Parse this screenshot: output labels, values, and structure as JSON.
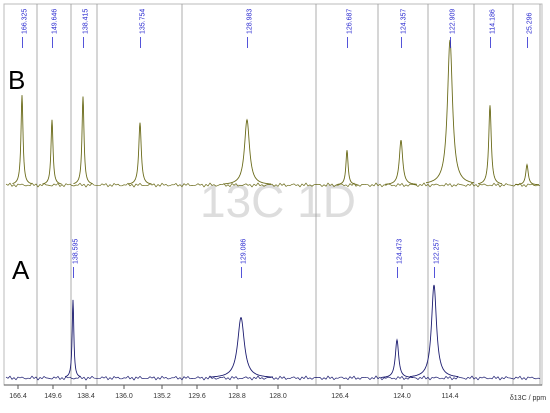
{
  "chart_data": {
    "type": "nmr",
    "watermark": "13C 1D",
    "x_axis_label": "δ13C / ppm",
    "segment_ticks": [
      "166.4",
      "149.6",
      "138.4",
      "136.0",
      "135.2",
      "129.6",
      "128.8",
      "128.0",
      "126.4",
      "124.0",
      "114.4"
    ],
    "spectra": [
      {
        "name": "B",
        "color": "#6b6b1a",
        "peaks": [
          {
            "label": "166.325",
            "intensity": 62
          },
          {
            "label": "149.646",
            "intensity": 45
          },
          {
            "label": "138.415",
            "intensity": 61
          },
          {
            "label": "135.754",
            "intensity": 43
          },
          {
            "label": "128.983",
            "intensity": 45
          },
          {
            "label": "126.687",
            "intensity": 24
          },
          {
            "label": "124.357",
            "intensity": 31
          },
          {
            "label": "122.909",
            "intensity": 100
          },
          {
            "label": "114.186",
            "intensity": 55
          },
          {
            "label": "25.296",
            "intensity": 14
          }
        ]
      },
      {
        "name": "A",
        "color": "#1c1c70",
        "peaks": [
          {
            "label": "138.595",
            "intensity": 84
          },
          {
            "label": "129.086",
            "intensity": 65
          },
          {
            "label": "124.473",
            "intensity": 41
          },
          {
            "label": "122.257",
            "intensity": 100
          }
        ]
      }
    ]
  }
}
